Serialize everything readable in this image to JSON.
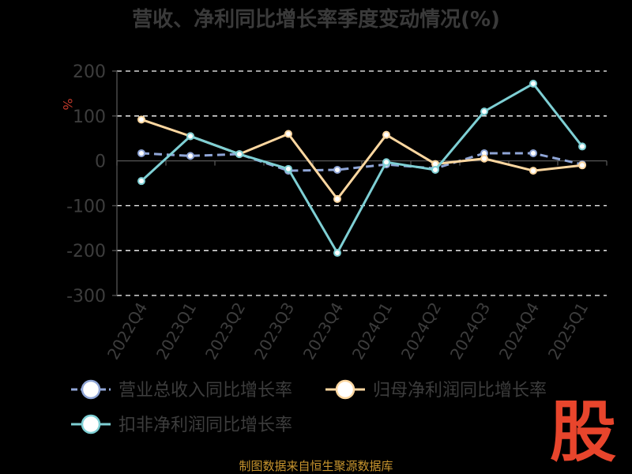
{
  "chart_data": {
    "type": "line",
    "title": "营收、净利同比增长率季度变动情况(%)",
    "ylabel": "%",
    "xlabel": "",
    "categories": [
      "2022Q4",
      "2023Q1",
      "2023Q2",
      "2023Q3",
      "2023Q4",
      "2024Q1",
      "2024Q2",
      "2024Q3",
      "2024Q4",
      "2025Q1"
    ],
    "ylim": [
      -300,
      200
    ],
    "yticks": [
      200,
      100,
      0,
      -100,
      -200,
      -300
    ],
    "grid": true,
    "legend_position": "bottom",
    "series": [
      {
        "name": "营业总收入同比增长率",
        "color": "#8fa5d6",
        "dashed": true,
        "values": [
          17,
          11,
          15,
          -22,
          -20,
          -8,
          -17,
          17,
          17,
          -8
        ]
      },
      {
        "name": "归母净利润同比增长率",
        "color": "#fdd7a0",
        "dashed": false,
        "values": [
          92,
          55,
          15,
          60,
          -85,
          58,
          -7,
          5,
          -22,
          -10
        ]
      },
      {
        "name": "扣非净利润同比增长率",
        "color": "#7ecfd4",
        "dashed": false,
        "values": [
          -45,
          55,
          15,
          -18,
          -205,
          -3,
          -20,
          110,
          172,
          32
        ]
      }
    ]
  },
  "footer": "制图数据来自恒生聚源数据库",
  "logo": "股"
}
